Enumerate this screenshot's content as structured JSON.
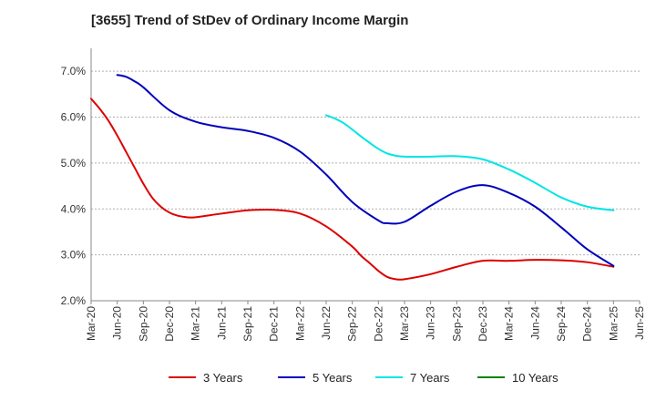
{
  "title": "[3655]  Trend of StDev of Ordinary Income Margin",
  "colors": {
    "3 Years": "#dd0000",
    "5 Years": "#0000bb",
    "7 Years": "#00e5e5",
    "10 Years": "#008000",
    "grid": "#b0b0b0",
    "axis": "#888888"
  },
  "chart_data": {
    "type": "line",
    "xlabel": "",
    "ylabel": "",
    "ylim": [
      2.0,
      7.5
    ],
    "y_ticks": [
      "2.0%",
      "3.0%",
      "4.0%",
      "5.0%",
      "6.0%",
      "7.0%"
    ],
    "y_tick_values": [
      2.0,
      3.0,
      4.0,
      5.0,
      6.0,
      7.0
    ],
    "x_ticks": [
      "Mar-20",
      "Jun-20",
      "Sep-20",
      "Dec-20",
      "Mar-21",
      "Jun-21",
      "Sep-21",
      "Dec-21",
      "Mar-22",
      "Jun-22",
      "Sep-22",
      "Dec-22",
      "Mar-23",
      "Jun-23",
      "Sep-23",
      "Dec-23",
      "Mar-24",
      "Jun-24",
      "Sep-24",
      "Dec-24",
      "Mar-25",
      "Jun-25"
    ],
    "grid": "horizontal dashed",
    "legend_position": "bottom",
    "series": [
      {
        "name": "3 Years",
        "x": [
          "Mar-20",
          "Apr-20",
          "May-20",
          "Jun-20",
          "Jul-20",
          "Aug-20",
          "Sep-20",
          "Oct-20",
          "Nov-20",
          "Dec-20",
          "Jan-21",
          "Feb-21",
          "Mar-21",
          "Jun-21",
          "Sep-21",
          "Dec-21",
          "Mar-22",
          "Jun-22",
          "Sep-22",
          "Oct-22",
          "Nov-22",
          "Dec-22",
          "Jan-23",
          "Feb-23",
          "Mar-23",
          "Jun-23",
          "Sep-23",
          "Dec-23",
          "Mar-24",
          "Jun-24",
          "Sep-24",
          "Dec-24",
          "Mar-25"
        ],
        "values": [
          6.4,
          6.18,
          5.92,
          5.6,
          5.25,
          4.9,
          4.55,
          4.25,
          4.05,
          3.92,
          3.85,
          3.82,
          3.82,
          3.9,
          3.97,
          3.98,
          3.9,
          3.62,
          3.18,
          2.98,
          2.82,
          2.65,
          2.52,
          2.47,
          2.47,
          2.58,
          2.74,
          2.87,
          2.87,
          2.89,
          2.88,
          2.84,
          2.74
        ]
      },
      {
        "name": "5 Years",
        "x": [
          "Jun-20",
          "Jul-20",
          "Aug-20",
          "Sep-20",
          "Dec-20",
          "Mar-21",
          "Jun-21",
          "Sep-21",
          "Dec-21",
          "Mar-22",
          "Jun-22",
          "Sep-22",
          "Dec-22",
          "Jan-23",
          "Mar-23",
          "Jun-23",
          "Sep-23",
          "Dec-23",
          "Mar-24",
          "Jun-24",
          "Sep-24",
          "Dec-24",
          "Mar-25"
        ],
        "values": [
          6.92,
          6.88,
          6.78,
          6.65,
          6.15,
          5.9,
          5.78,
          5.7,
          5.55,
          5.25,
          4.75,
          4.15,
          3.75,
          3.69,
          3.72,
          4.07,
          4.38,
          4.52,
          4.35,
          4.05,
          3.6,
          3.12,
          2.76
        ]
      },
      {
        "name": "7 Years",
        "x": [
          "Jun-22",
          "Jul-22",
          "Aug-22",
          "Sep-22",
          "Oct-22",
          "Nov-22",
          "Dec-22",
          "Jan-23",
          "Feb-23",
          "Mar-23",
          "Jun-23",
          "Sep-23",
          "Dec-23",
          "Mar-24",
          "Jun-24",
          "Sep-24",
          "Dec-24",
          "Mar-25"
        ],
        "values": [
          6.04,
          5.97,
          5.87,
          5.73,
          5.58,
          5.44,
          5.31,
          5.21,
          5.16,
          5.14,
          5.14,
          5.15,
          5.08,
          4.86,
          4.57,
          4.25,
          4.05,
          3.97
        ]
      },
      {
        "name": "10 Years",
        "x": [],
        "values": []
      }
    ]
  }
}
